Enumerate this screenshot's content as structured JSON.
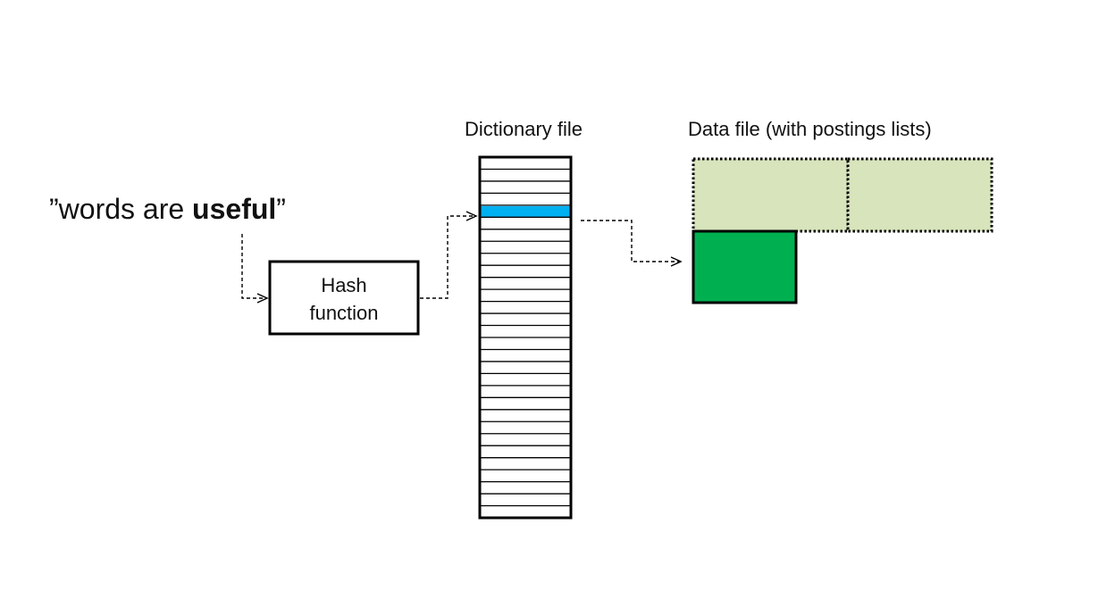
{
  "query": {
    "open_quote": "”",
    "text_plain": "words are ",
    "text_bold": "useful",
    "close_quote": "”"
  },
  "hash_box": {
    "line1": "Hash",
    "line2": "function"
  },
  "dictionary": {
    "title": "Dictionary file",
    "slot_count": 30,
    "highlighted_slot": 4
  },
  "data_file": {
    "title": "Data file (with postings lists)"
  },
  "colors": {
    "highlight": "#00B0F0",
    "posting_active": "#00B050",
    "posting_inactive": "#D8E4BC",
    "stroke": "#000000"
  }
}
